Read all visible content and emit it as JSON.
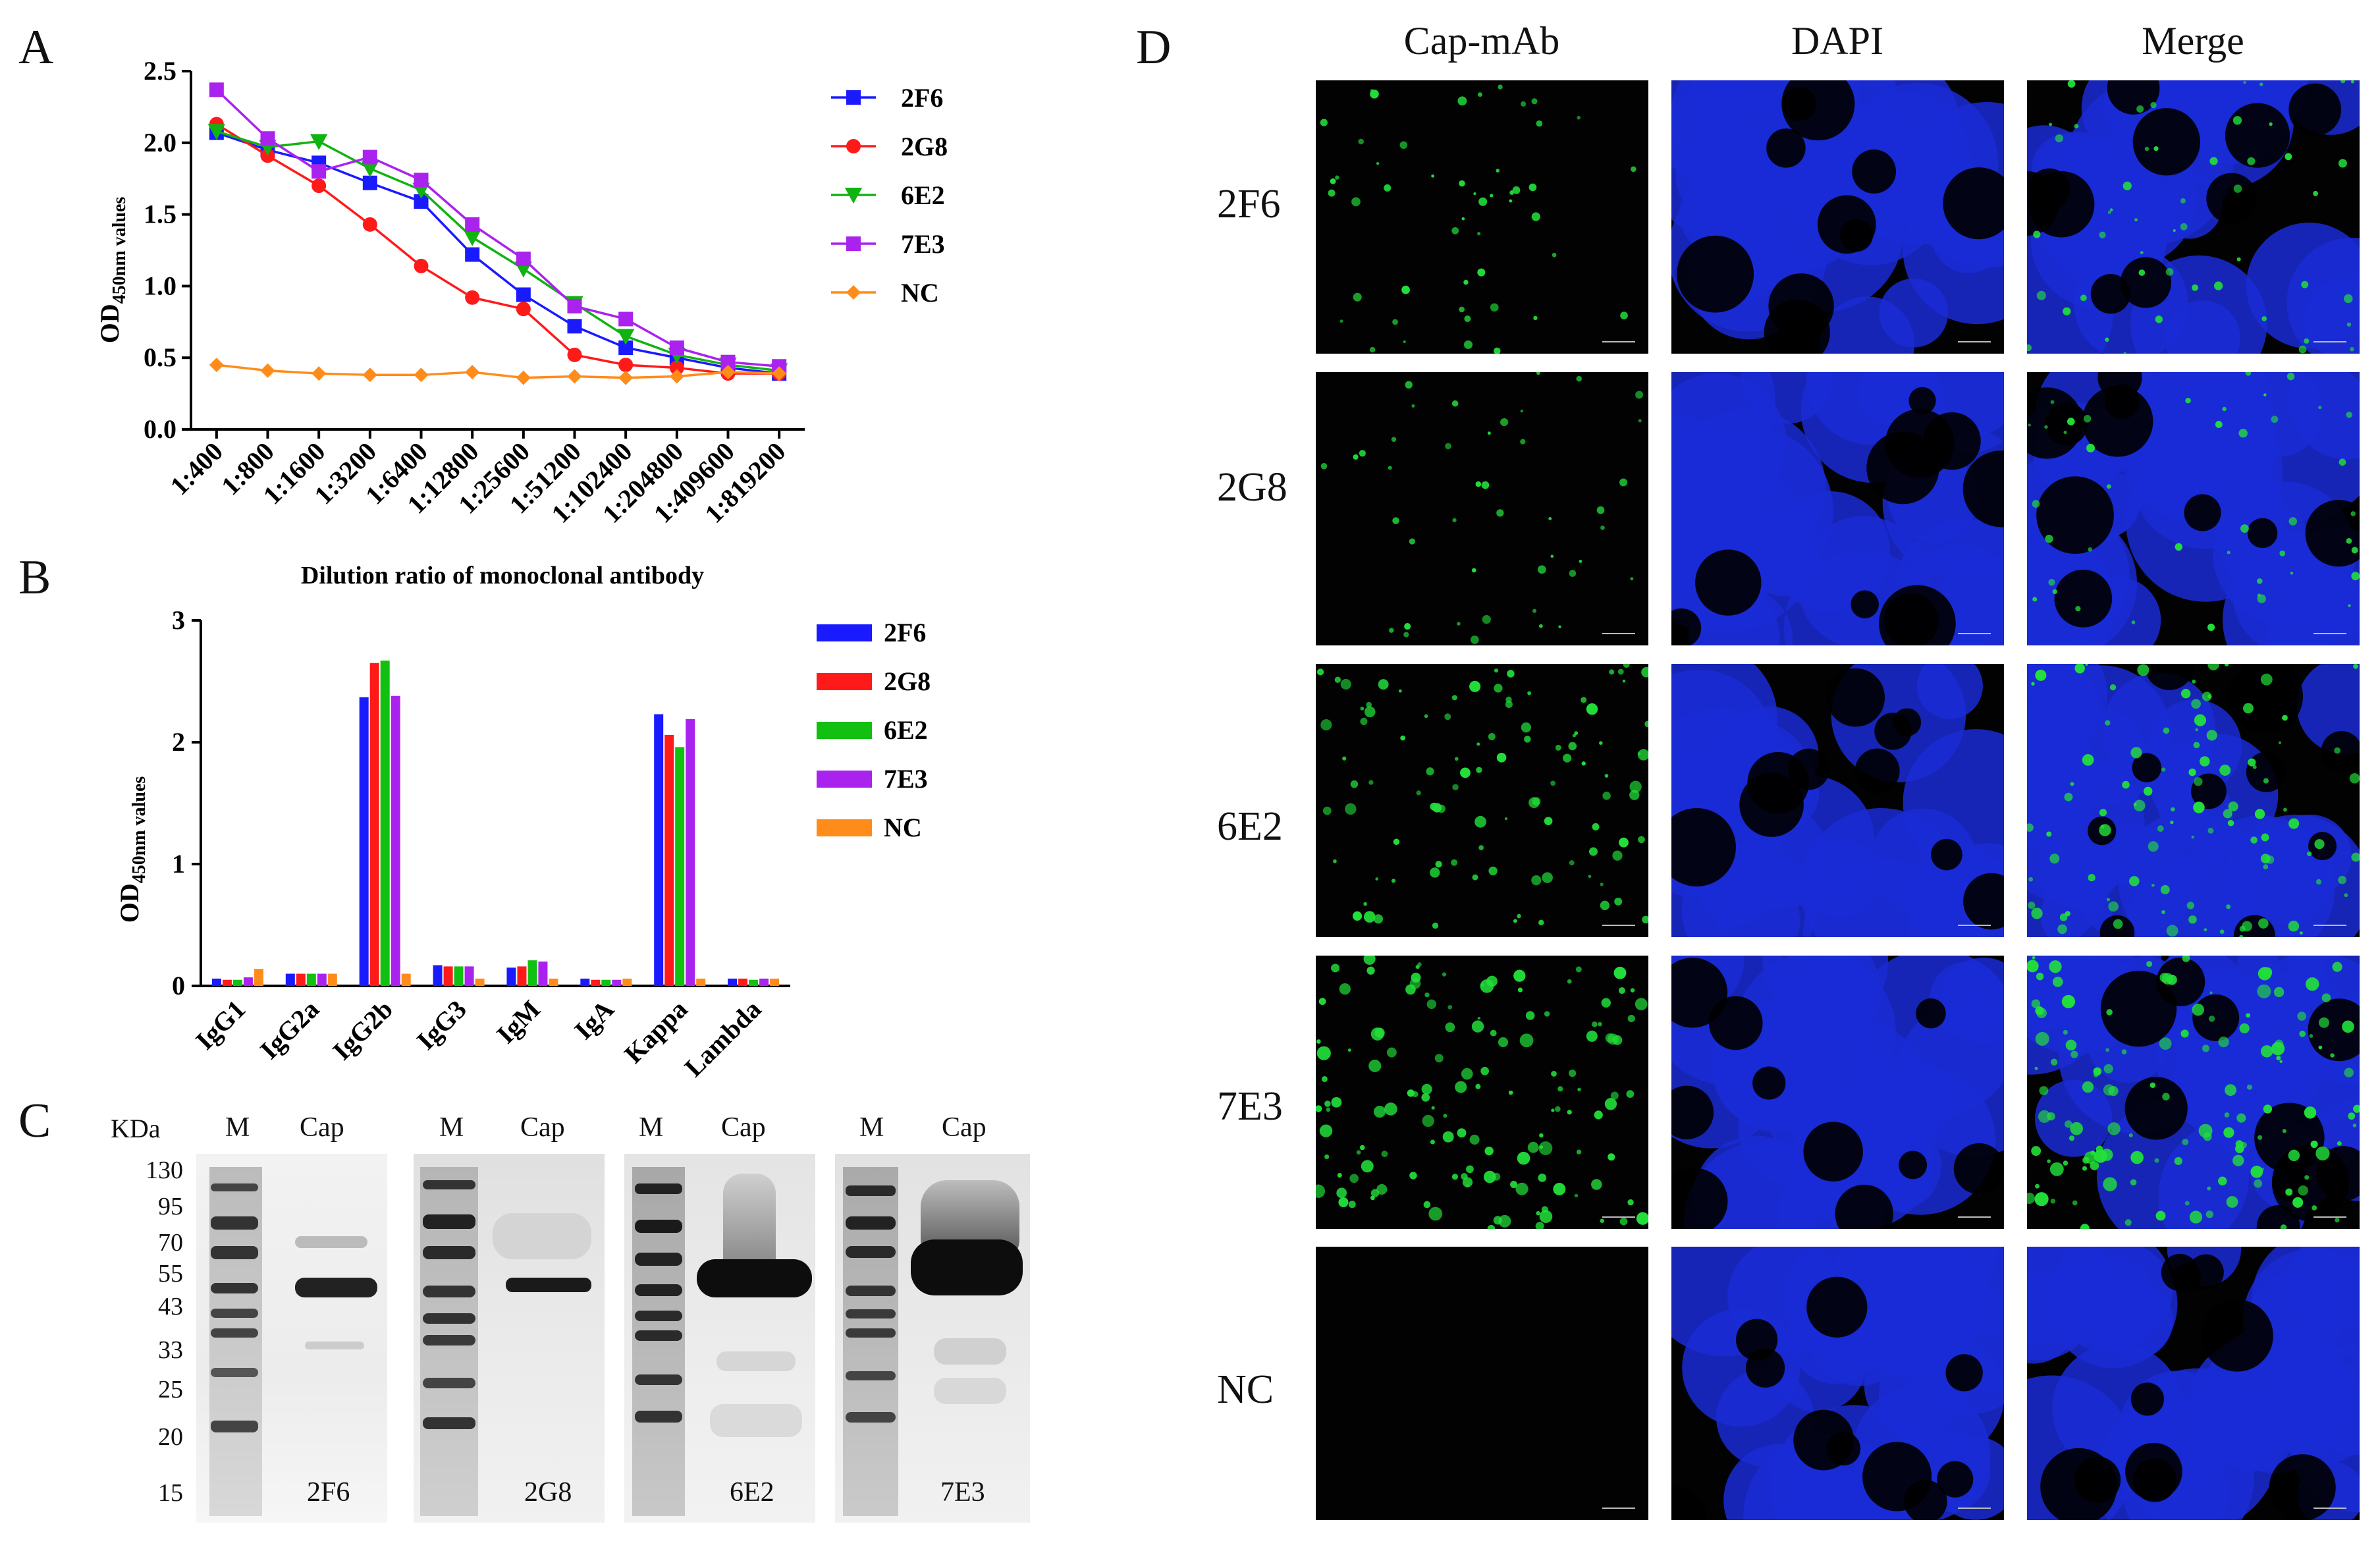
{
  "panels": {
    "a": "A",
    "b": "B",
    "c": "C",
    "d": "D"
  },
  "chart_a": {
    "type": "line",
    "ylabel_main": "OD",
    "ylabel_sub": "450nm values",
    "xlabel": "Dilution ratio of monoclonal antibody",
    "ylim": [
      0,
      2.5
    ],
    "yticks": [
      "0.0",
      "0.5",
      "1.0",
      "1.5",
      "2.0",
      "2.5"
    ],
    "categories": [
      "1:400",
      "1:800",
      "1:1600",
      "1:3200",
      "1:6400",
      "1:12800",
      "1:25600",
      "1:51200",
      "1:102400",
      "1:204800",
      "1:409600",
      "1:819200"
    ],
    "series": [
      {
        "name": "2F6",
        "color": "#1a1aff",
        "marker": "square",
        "values": [
          2.07,
          1.95,
          1.86,
          1.72,
          1.59,
          1.22,
          0.94,
          0.72,
          0.57,
          0.5,
          0.43,
          0.39
        ]
      },
      {
        "name": "2G8",
        "color": "#ff1a1a",
        "marker": "circle",
        "values": [
          2.13,
          1.91,
          1.7,
          1.43,
          1.14,
          0.92,
          0.84,
          0.52,
          0.45,
          0.43,
          0.39,
          0.39
        ]
      },
      {
        "name": "6E2",
        "color": "#11b311",
        "marker": "triangle-down",
        "values": [
          2.08,
          1.97,
          2.01,
          1.82,
          1.67,
          1.34,
          1.12,
          0.88,
          0.65,
          0.52,
          0.45,
          0.41
        ]
      },
      {
        "name": "7E3",
        "color": "#aa22ee",
        "marker": "square",
        "values": [
          2.37,
          2.03,
          1.8,
          1.9,
          1.74,
          1.43,
          1.19,
          0.86,
          0.77,
          0.57,
          0.47,
          0.44
        ]
      },
      {
        "name": "NC",
        "color": "#ff8c1a",
        "marker": "diamond",
        "values": [
          0.45,
          0.41,
          0.39,
          0.38,
          0.38,
          0.4,
          0.36,
          0.37,
          0.36,
          0.37,
          0.4,
          0.39
        ]
      }
    ]
  },
  "chart_b": {
    "type": "bar",
    "ylabel_main": "OD",
    "ylabel_sub": "450nm values",
    "ylim": [
      0,
      3
    ],
    "yticks": [
      "0",
      "1",
      "2",
      "3"
    ],
    "categories": [
      "IgG1",
      "IgG2a",
      "IgG2b",
      "IgG3",
      "IgM",
      "IgA",
      "Kappa",
      "Lambda"
    ],
    "series": [
      {
        "name": "2F6",
        "color": "#1a1aff",
        "values": [
          0.06,
          0.1,
          2.37,
          0.17,
          0.15,
          0.06,
          2.23,
          0.06
        ]
      },
      {
        "name": "2G8",
        "color": "#ff1a1a",
        "values": [
          0.05,
          0.1,
          2.65,
          0.16,
          0.16,
          0.05,
          2.06,
          0.06
        ]
      },
      {
        "name": "6E2",
        "color": "#11c011",
        "values": [
          0.05,
          0.1,
          2.67,
          0.16,
          0.21,
          0.05,
          1.96,
          0.05
        ]
      },
      {
        "name": "7E3",
        "color": "#aa22ee",
        "values": [
          0.07,
          0.1,
          2.38,
          0.16,
          0.2,
          0.05,
          2.19,
          0.06
        ]
      },
      {
        "name": "NC",
        "color": "#ff8c1a",
        "values": [
          0.14,
          0.1,
          0.1,
          0.06,
          0.06,
          0.06,
          0.06,
          0.06
        ]
      }
    ]
  },
  "western_blot": {
    "kda_header": "KDa",
    "markers": [
      "130",
      "95",
      "70",
      "55",
      "43",
      "33",
      "25",
      "20",
      "15"
    ],
    "lane_labels": {
      "m": "M",
      "cap": "Cap"
    },
    "clones": [
      "2F6",
      "2G8",
      "6E2",
      "7E3"
    ]
  },
  "ifa": {
    "columns": [
      "Cap-mAb",
      "DAPI",
      "Merge"
    ],
    "rows": [
      "2F6",
      "2G8",
      "6E2",
      "7E3",
      "NC"
    ],
    "colors": {
      "fluorescence": "#22e03a",
      "dapi": "#1a2bd6",
      "background": "#020202"
    }
  }
}
